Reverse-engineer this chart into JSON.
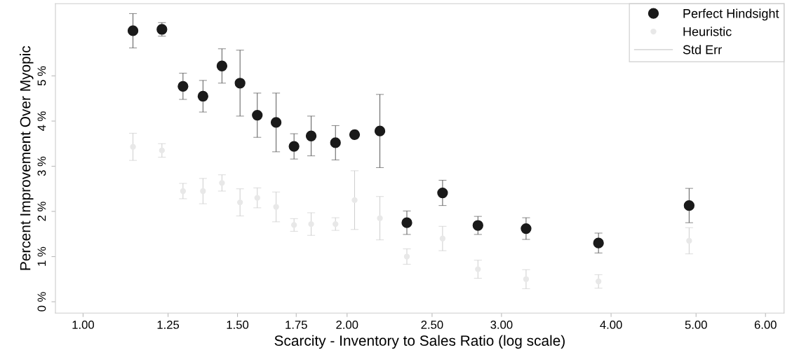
{
  "chart_data": {
    "type": "scatter",
    "xlabel": "Scarcity - Inventory to Sales Ratio (log scale)",
    "ylabel": "Percent Improvement Over Myopic",
    "log": "x",
    "xlim": [
      0.93,
      6.3
    ],
    "xticks": [
      {
        "value": 1,
        "label": "1.00"
      },
      {
        "value": 1.25,
        "label": "1.25"
      },
      {
        "value": 1.5,
        "label": "1.50"
      },
      {
        "value": 1.75,
        "label": "1.75"
      },
      {
        "value": 2,
        "label": "2.00"
      },
      {
        "value": 2.5,
        "label": "2.50"
      },
      {
        "value": 3,
        "label": "3.00"
      },
      {
        "value": 4,
        "label": "4.00"
      },
      {
        "value": 5,
        "label": "5.00"
      },
      {
        "value": 6,
        "label": "6.00"
      }
    ],
    "ylim": [
      -0.25,
      6.6
    ],
    "yticks": [
      {
        "value": 0,
        "label": "0 %"
      },
      {
        "value": 1,
        "label": "1 %"
      },
      {
        "value": 2,
        "label": "2 %"
      },
      {
        "value": 3,
        "label": "3 %"
      },
      {
        "value": 4,
        "label": "4 %"
      },
      {
        "value": 5,
        "label": "5 %"
      }
    ],
    "x": [
      1.14,
      1.23,
      1.3,
      1.37,
      1.44,
      1.51,
      1.58,
      1.66,
      1.74,
      1.82,
      1.94,
      2.04,
      2.18,
      2.34,
      2.57,
      2.82,
      3.2,
      3.87,
      4.91
    ],
    "series": [
      {
        "name": "Perfect Hindsight",
        "color": "#1a1a1a",
        "marker": "circle",
        "values": [
          6.0,
          6.03,
          4.77,
          4.55,
          5.22,
          4.84,
          4.13,
          3.97,
          3.44,
          3.67,
          3.52,
          3.7,
          3.78,
          1.75,
          2.41,
          1.69,
          1.62,
          1.3,
          2.13
        ],
        "errors": [
          0.38,
          0.15,
          0.29,
          0.35,
          0.38,
          0.73,
          0.49,
          0.65,
          0.28,
          0.44,
          0.38,
          null,
          0.81,
          0.26,
          0.28,
          0.2,
          0.24,
          0.22,
          0.38
        ]
      },
      {
        "name": "Heuristic",
        "color": "#e8e8e8",
        "marker": "circle",
        "values": [
          3.43,
          3.35,
          2.45,
          2.45,
          2.63,
          2.2,
          2.3,
          2.1,
          1.7,
          1.72,
          1.72,
          2.25,
          1.85,
          1.0,
          1.4,
          0.72,
          0.5,
          0.45,
          1.35
        ],
        "errors": [
          0.3,
          0.15,
          0.17,
          0.28,
          0.18,
          0.3,
          0.22,
          0.33,
          0.14,
          0.25,
          0.14,
          0.65,
          0.48,
          0.17,
          0.27,
          0.2,
          0.21,
          0.15,
          0.29
        ]
      }
    ],
    "annotations": [
      "Std Err"
    ],
    "legend": "top right",
    "grid": false
  }
}
